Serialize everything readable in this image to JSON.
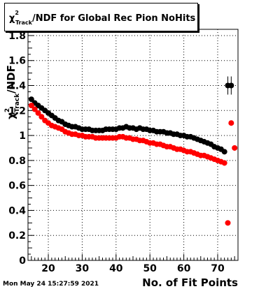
{
  "title": {
    "chi": "χ",
    "chi_sup": "2",
    "chi_sub": "Track",
    "rest": "/NDF for Global Rec Pion NoHits"
  },
  "timestamp": "Mon May 24 15:27:59 2021",
  "chart_data": {
    "type": "scatter",
    "xlabel": "No. of Fit Points",
    "ylabel": {
      "chi": "χ",
      "sup": "2",
      "sub": "Track",
      "rest": "/NDF"
    },
    "xlim": [
      14,
      76
    ],
    "ylim": [
      0,
      1.85
    ],
    "x_ticks": [
      20,
      30,
      40,
      50,
      60,
      70
    ],
    "y_ticks": [
      0,
      0.2,
      0.4,
      0.6,
      0.8,
      1,
      1.2,
      1.4,
      1.6,
      1.8
    ],
    "y_tick_labels": [
      "0",
      "0.2",
      "0.4",
      "0.6",
      "0.8",
      "1",
      "1.2",
      "1.4",
      "1.6",
      "1.8"
    ],
    "grid": true,
    "series": [
      {
        "color": "#000000",
        "marker": "circle",
        "points": [
          [
            15,
            1.29
          ],
          [
            16,
            1.26
          ],
          [
            17,
            1.24
          ],
          [
            18,
            1.22
          ],
          [
            19,
            1.2
          ],
          [
            20,
            1.18
          ],
          [
            21,
            1.16
          ],
          [
            22,
            1.14
          ],
          [
            23,
            1.12
          ],
          [
            24,
            1.11
          ],
          [
            25,
            1.09
          ],
          [
            26,
            1.08
          ],
          [
            27,
            1.07
          ],
          [
            28,
            1.07
          ],
          [
            29,
            1.06
          ],
          [
            30,
            1.05
          ],
          [
            31,
            1.05
          ],
          [
            32,
            1.05
          ],
          [
            33,
            1.04
          ],
          [
            34,
            1.04
          ],
          [
            35,
            1.04
          ],
          [
            36,
            1.04
          ],
          [
            37,
            1.05
          ],
          [
            38,
            1.05
          ],
          [
            39,
            1.05
          ],
          [
            40,
            1.05
          ],
          [
            41,
            1.06
          ],
          [
            42,
            1.06
          ],
          [
            43,
            1.07
          ],
          [
            44,
            1.06
          ],
          [
            45,
            1.06
          ],
          [
            46,
            1.05
          ],
          [
            47,
            1.06
          ],
          [
            48,
            1.05
          ],
          [
            49,
            1.05
          ],
          [
            50,
            1.04
          ],
          [
            51,
            1.04
          ],
          [
            52,
            1.03
          ],
          [
            53,
            1.03
          ],
          [
            54,
            1.03
          ],
          [
            55,
            1.02
          ],
          [
            56,
            1.02
          ],
          [
            57,
            1.01
          ],
          [
            58,
            1.01
          ],
          [
            59,
            1.0
          ],
          [
            60,
            1.0
          ],
          [
            61,
            0.99
          ],
          [
            62,
            0.99
          ],
          [
            63,
            0.98
          ],
          [
            64,
            0.97
          ],
          [
            65,
            0.96
          ],
          [
            66,
            0.95
          ],
          [
            67,
            0.94
          ],
          [
            68,
            0.93
          ],
          [
            69,
            0.91
          ],
          [
            70,
            0.9
          ],
          [
            71,
            0.89
          ],
          [
            72,
            0.87
          ],
          [
            73,
            1.4
          ],
          [
            74,
            1.4
          ]
        ]
      },
      {
        "color": "#ff0000",
        "marker": "circle",
        "points": [
          [
            15,
            1.24
          ],
          [
            16,
            1.21
          ],
          [
            17,
            1.18
          ],
          [
            18,
            1.15
          ],
          [
            19,
            1.12
          ],
          [
            20,
            1.1
          ],
          [
            21,
            1.08
          ],
          [
            22,
            1.07
          ],
          [
            23,
            1.06
          ],
          [
            24,
            1.05
          ],
          [
            25,
            1.03
          ],
          [
            26,
            1.02
          ],
          [
            27,
            1.01
          ],
          [
            28,
            1.01
          ],
          [
            29,
            1.0
          ],
          [
            30,
            1.0
          ],
          [
            31,
            0.99
          ],
          [
            32,
            0.99
          ],
          [
            33,
            0.99
          ],
          [
            34,
            0.98
          ],
          [
            35,
            0.98
          ],
          [
            36,
            0.98
          ],
          [
            37,
            0.98
          ],
          [
            38,
            0.98
          ],
          [
            39,
            0.98
          ],
          [
            40,
            0.98
          ],
          [
            41,
            0.99
          ],
          [
            42,
            0.99
          ],
          [
            43,
            0.98
          ],
          [
            44,
            0.98
          ],
          [
            45,
            0.97
          ],
          [
            46,
            0.97
          ],
          [
            47,
            0.96
          ],
          [
            48,
            0.96
          ],
          [
            49,
            0.95
          ],
          [
            50,
            0.94
          ],
          [
            51,
            0.94
          ],
          [
            52,
            0.93
          ],
          [
            53,
            0.93
          ],
          [
            54,
            0.92
          ],
          [
            55,
            0.91
          ],
          [
            56,
            0.91
          ],
          [
            57,
            0.9
          ],
          [
            58,
            0.89
          ],
          [
            59,
            0.89
          ],
          [
            60,
            0.88
          ],
          [
            61,
            0.87
          ],
          [
            62,
            0.87
          ],
          [
            63,
            0.86
          ],
          [
            64,
            0.85
          ],
          [
            65,
            0.84
          ],
          [
            66,
            0.84
          ],
          [
            67,
            0.83
          ],
          [
            68,
            0.82
          ],
          [
            69,
            0.81
          ],
          [
            70,
            0.8
          ],
          [
            71,
            0.79
          ],
          [
            72,
            0.78
          ],
          [
            73,
            0.3
          ],
          [
            74,
            1.1
          ],
          [
            75,
            0.9
          ]
        ]
      }
    ]
  }
}
